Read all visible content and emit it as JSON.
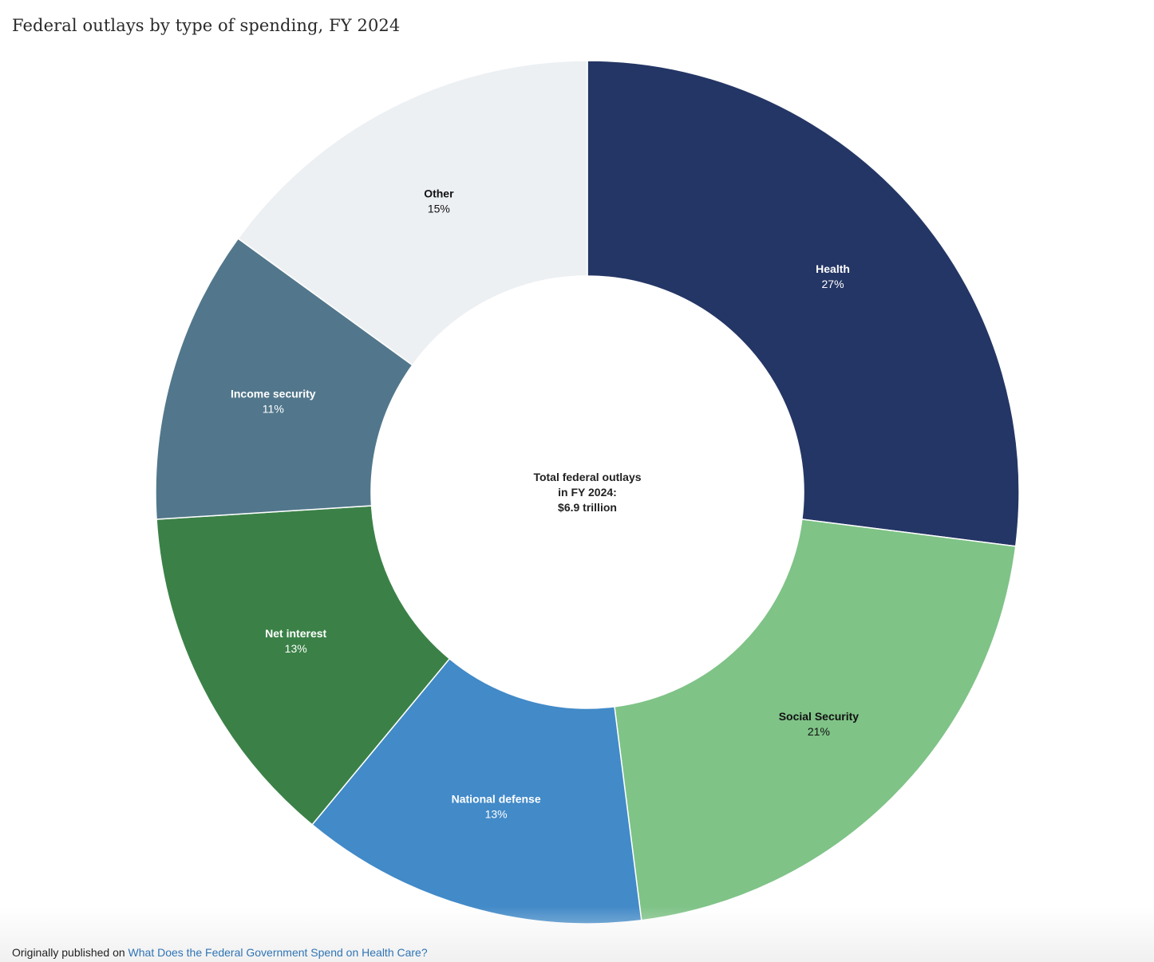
{
  "title": "Federal outlays by type of spending, FY 2024",
  "center_text": {
    "line1": "Total federal outlays",
    "line2": "in FY 2024:",
    "line3": "$6.9 trillion"
  },
  "footer": {
    "prefix": "Originally published on",
    "link_text": "What Does the Federal Government Spend on Health Care?"
  },
  "chart_data": {
    "type": "pie",
    "donut": true,
    "start_angle_deg": 0,
    "direction": "clockwise",
    "slices": [
      {
        "label": "Health",
        "percent_label": "27%",
        "value": 27,
        "color": "#243665",
        "text_color": "#ffffff"
      },
      {
        "label": "Social Security",
        "percent_label": "21%",
        "value": 21,
        "color": "#7fc387",
        "text_color": "#111111"
      },
      {
        "label": "National defense",
        "percent_label": "13%",
        "value": 13,
        "color": "#428ac8",
        "text_color": "#ffffff"
      },
      {
        "label": "Net interest",
        "percent_label": "13%",
        "value": 13,
        "color": "#3b8147",
        "text_color": "#ffffff"
      },
      {
        "label": "Income security",
        "percent_label": "11%",
        "value": 11,
        "color": "#52778c",
        "text_color": "#ffffff"
      },
      {
        "label": "Other",
        "percent_label": "15%",
        "value": 15,
        "color": "#edf0f3",
        "text_color": "#111111"
      }
    ]
  }
}
